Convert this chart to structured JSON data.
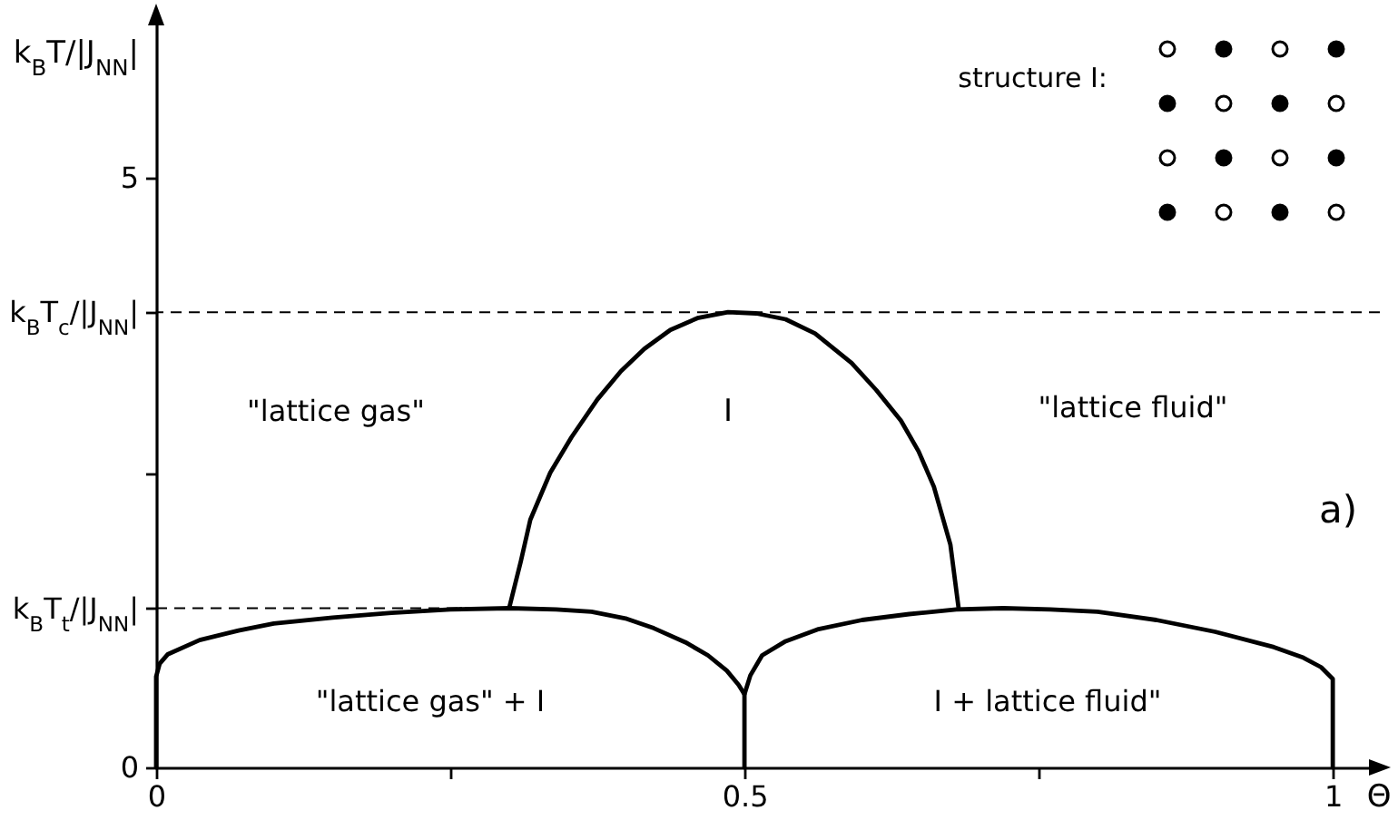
{
  "chart_data": {
    "type": "line",
    "xlabel": "Θ",
    "ylabel": "k$_{B}$T/|J$_{NN}$|",
    "xlim": [
      0,
      1.04
    ],
    "ylim": [
      0,
      6.4
    ],
    "xticks": [
      0,
      {
        "value": 0.25,
        "label": null
      },
      0.5,
      {
        "value": 0.75,
        "label": null
      },
      1
    ],
    "yticks": [
      0,
      {
        "value": 1.35,
        "label": "k$_{B}$T$_{t}$/|J$_{NN}$|"
      },
      {
        "value": 2.5,
        "label": null
      },
      {
        "value": 3.86,
        "label": "k$_{B}$T$_{c}$/|J$_{NN}$|"
      },
      5
    ],
    "series": [
      {
        "color": "#000000",
        "x": [
          0.3,
          0.31,
          0.318,
          0.335,
          0.353,
          0.375,
          0.395,
          0.415,
          0.437,
          0.46,
          0.486,
          0.51,
          0.535,
          0.56,
          0.591,
          0.612,
          0.633,
          0.648,
          0.661,
          0.675,
          0.682
        ],
        "values": [
          1.35,
          1.75,
          2.1,
          2.5,
          2.8,
          3.12,
          3.36,
          3.55,
          3.71,
          3.81,
          3.86,
          3.85,
          3.8,
          3.68,
          3.43,
          3.2,
          2.94,
          2.68,
          2.38,
          1.89,
          1.35
        ]
      },
      {
        "color": "#000000",
        "x": [
          0,
          0,
          0.003,
          0.01,
          0.037,
          0.07,
          0.1,
          0.15,
          0.2,
          0.25,
          0.3,
          0.34,
          0.37,
          0.4,
          0.423,
          0.45,
          0.469,
          0.485,
          0.495,
          0.5,
          0.5
        ],
        "values": [
          0,
          0.77,
          0.88,
          0.96,
          1.08,
          1.16,
          1.22,
          1.27,
          1.31,
          1.34,
          1.35,
          1.34,
          1.32,
          1.26,
          1.18,
          1.06,
          0.95,
          0.82,
          0.7,
          0.62,
          0
        ]
      },
      {
        "color": "#000000",
        "x": [
          0.5,
          0.505,
          0.515,
          0.535,
          0.562,
          0.6,
          0.64,
          0.68,
          0.72,
          0.76,
          0.8,
          0.85,
          0.9,
          0.95,
          0.975,
          0.99,
          1,
          1
        ],
        "values": [
          0.62,
          0.78,
          0.95,
          1.07,
          1.17,
          1.25,
          1.3,
          1.34,
          1.35,
          1.34,
          1.32,
          1.25,
          1.15,
          1.02,
          0.93,
          0.85,
          0.75,
          0
        ]
      },
      {
        "color": "#000000",
        "line_style": "dashed",
        "x": [
          0,
          0.3
        ],
        "values": [
          1.35,
          1.35
        ]
      }
    ],
    "ref_lines": [
      {
        "axis": "y",
        "value": 3.86,
        "line_style": "dashed",
        "color": "#000000"
      }
    ],
    "annotations": [
      "structure I:",
      "\"lattice gas\"",
      "I",
      "\"lattice fluid\"",
      "a)",
      "\"lattice gas\" + I",
      "I + lattice fluid\""
    ]
  }
}
